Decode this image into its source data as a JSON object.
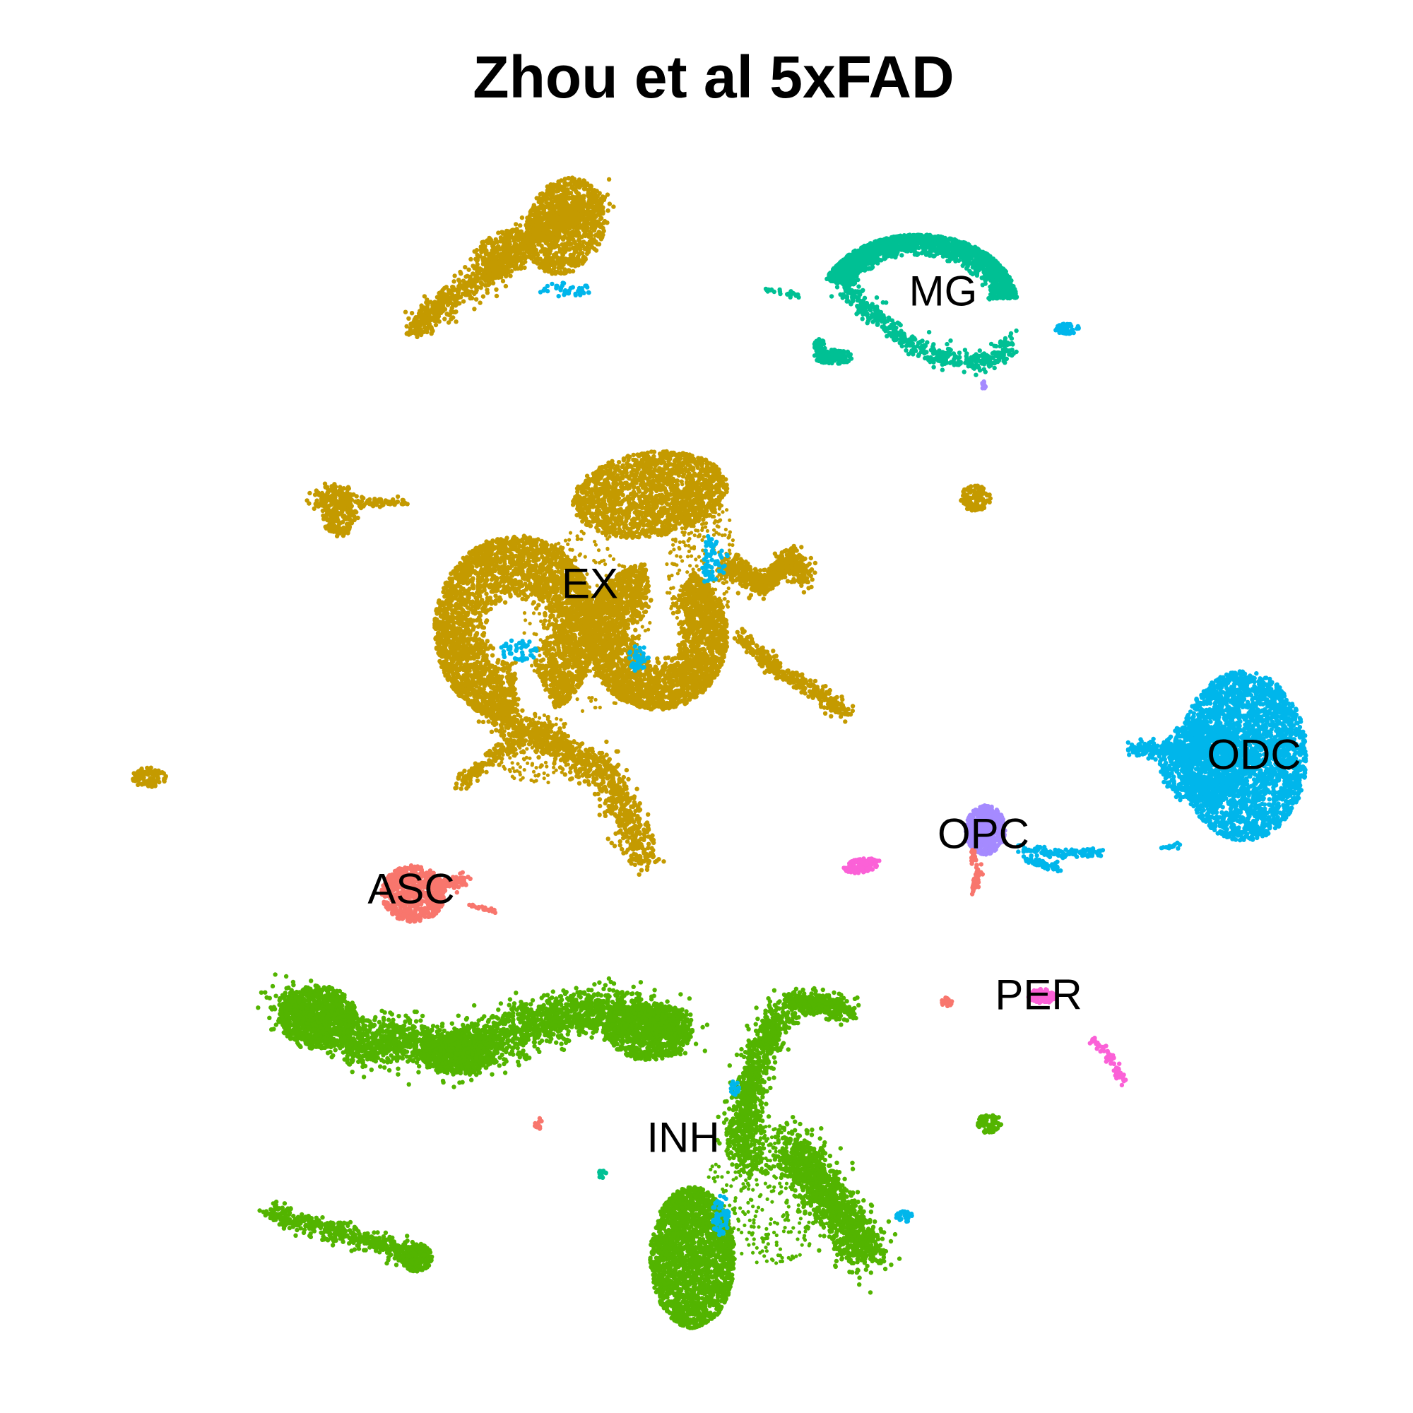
{
  "chart_data": {
    "type": "scatter",
    "title": "Zhou et al 5xFAD",
    "xlabel": "",
    "ylabel": "",
    "axes": "none",
    "grid": false,
    "legend": "none",
    "cell_types": [
      {
        "name": "ASC",
        "color": "#F8766D"
      },
      {
        "name": "EX",
        "color": "#C49A00"
      },
      {
        "name": "INH",
        "color": "#53B400"
      },
      {
        "name": "MG",
        "color": "#00C094"
      },
      {
        "name": "ODC",
        "color": "#00B6EB"
      },
      {
        "name": "OPC",
        "color": "#A58AFF"
      },
      {
        "name": "PER",
        "color": "#FB61D7"
      }
    ]
  }
}
